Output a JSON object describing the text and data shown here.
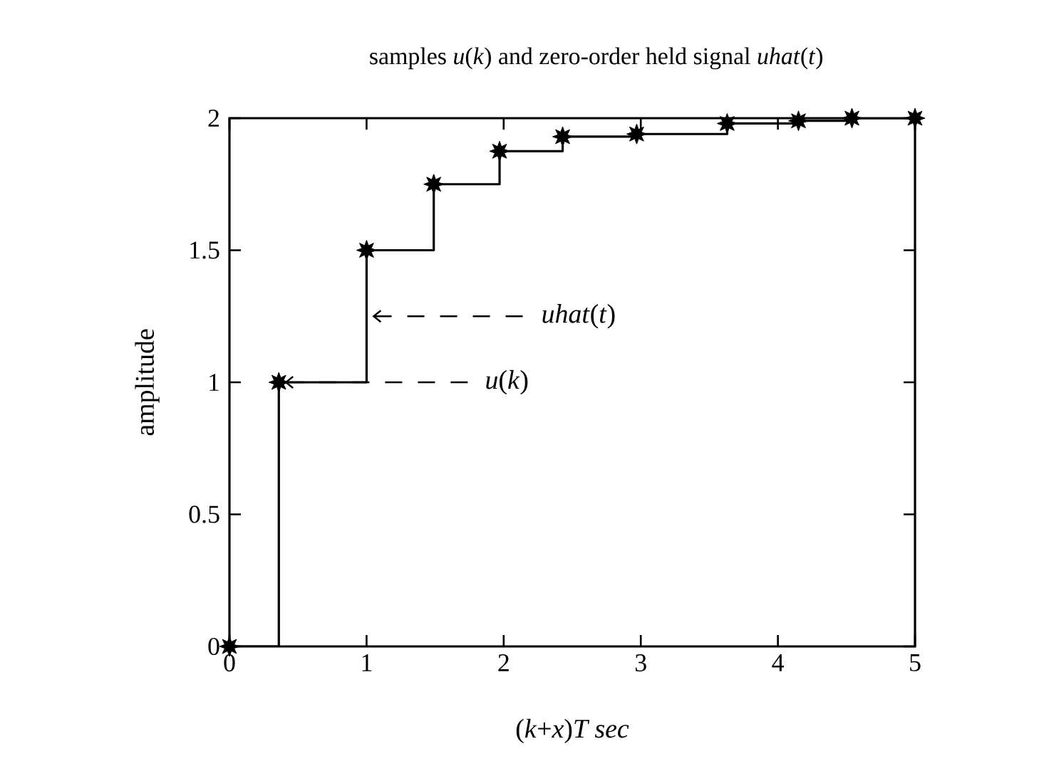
{
  "chart_data": {
    "type": "step",
    "title": "samples *u*(*k*) and zero-order held signal *uhat*(*t*)",
    "xlabel": "(*k*+*x*)*T sec*",
    "ylabel": "amplitude",
    "x": [
      0,
      0.36,
      1,
      1.49,
      1.97,
      2.43,
      2.97,
      3.63,
      4.15,
      4.54,
      5
    ],
    "series": [
      {
        "color": "#000000",
        "values": [
          0,
          1,
          1.5,
          1.75,
          1.875,
          1.93,
          1.94,
          1.98,
          1.99,
          2,
          2
        ]
      }
    ],
    "xlim": [
      0,
      5
    ],
    "ylim": [
      0,
      2
    ],
    "xticks": [
      0,
      1,
      2,
      3,
      4,
      5
    ],
    "yticks": [
      0,
      0.5,
      1,
      1.5,
      2
    ],
    "marker": "star",
    "line_style": "solid",
    "annotations": [
      {
        "text": "*u*(*k*)",
        "x": 0.36,
        "y": 1
      },
      {
        "text": "*uhat*(*t*)",
        "x": 1,
        "y": 1.25
      }
    ]
  }
}
